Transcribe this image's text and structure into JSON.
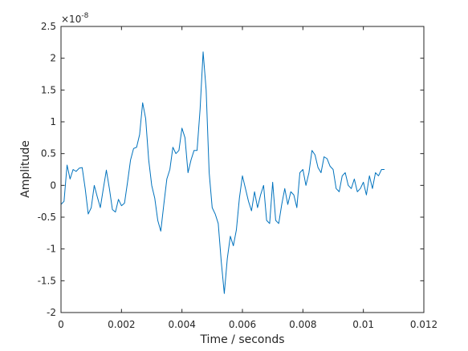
{
  "chart_data": {
    "type": "line",
    "xlabel": "Time / seconds",
    "ylabel": "Amplitude",
    "y_exponent_label": "×10",
    "y_exponent_power": "-8",
    "xlim": [
      0,
      0.012
    ],
    "ylim": [
      -2,
      2.5
    ],
    "x_ticks": [
      0,
      0.002,
      0.004,
      0.006,
      0.008,
      0.01,
      0.012
    ],
    "x_tick_labels": [
      "0",
      "0.002",
      "0.004",
      "0.006",
      "0.008",
      "0.01",
      "0.012"
    ],
    "y_ticks": [
      -2,
      -1.5,
      -1,
      -0.5,
      0,
      0.5,
      1,
      1.5,
      2,
      2.5
    ],
    "y_tick_labels": [
      "-2",
      "-1.5",
      "-1",
      "-0.5",
      "0",
      "0.5",
      "1",
      "1.5",
      "2",
      "2.5"
    ],
    "grid": false,
    "series_color": "#0072BD",
    "series": [
      {
        "x": [
          0.0,
          0.0001,
          0.0002,
          0.0003,
          0.0004,
          0.0005,
          0.0006,
          0.0007,
          0.0008,
          0.0009,
          0.001,
          0.0011,
          0.0012,
          0.0013,
          0.0014,
          0.0015,
          0.0016,
          0.0017,
          0.0018,
          0.0019,
          0.002,
          0.0021,
          0.0022,
          0.0023,
          0.0024,
          0.0025,
          0.0026,
          0.0027,
          0.0028,
          0.0029,
          0.003,
          0.0031,
          0.0032,
          0.0033,
          0.0034,
          0.0035,
          0.0036,
          0.0037,
          0.0038,
          0.0039,
          0.004,
          0.0041,
          0.0042,
          0.0043,
          0.0044,
          0.0045,
          0.0046,
          0.0047,
          0.0048,
          0.0049,
          0.005,
          0.0051,
          0.0052,
          0.0053,
          0.0054,
          0.0055,
          0.0056,
          0.0057,
          0.0058,
          0.0059,
          0.006,
          0.0061,
          0.0062,
          0.0063,
          0.0064,
          0.0065,
          0.0066,
          0.0067,
          0.0068,
          0.0069,
          0.007,
          0.0071,
          0.0072,
          0.0073,
          0.0074,
          0.0075,
          0.0076,
          0.0077,
          0.0078,
          0.0079,
          0.008,
          0.0081,
          0.0082,
          0.0083,
          0.0084,
          0.0085,
          0.0086,
          0.0087,
          0.0088,
          0.0089,
          0.009,
          0.0091,
          0.0092,
          0.0093,
          0.0094,
          0.0095,
          0.0096,
          0.0097,
          0.0098,
          0.0099,
          0.01,
          0.0101,
          0.0102,
          0.0103,
          0.0104,
          0.0105,
          0.0106,
          0.0107
        ],
        "y": [
          -0.3,
          -0.25,
          0.32,
          0.1,
          0.25,
          0.22,
          0.27,
          0.28,
          -0.05,
          -0.45,
          -0.35,
          0.0,
          -0.18,
          -0.35,
          -0.05,
          0.24,
          -0.05,
          -0.38,
          -0.42,
          -0.22,
          -0.32,
          -0.28,
          0.05,
          0.4,
          0.58,
          0.6,
          0.8,
          1.3,
          1.05,
          0.4,
          0.0,
          -0.2,
          -0.55,
          -0.72,
          -0.3,
          0.1,
          0.25,
          0.6,
          0.5,
          0.55,
          0.9,
          0.75,
          0.2,
          0.4,
          0.55,
          0.55,
          1.2,
          2.1,
          1.5,
          0.2,
          -0.35,
          -0.45,
          -0.6,
          -1.2,
          -1.7,
          -1.15,
          -0.8,
          -0.95,
          -0.7,
          -0.2,
          0.15,
          -0.05,
          -0.25,
          -0.4,
          -0.1,
          -0.35,
          -0.15,
          0.0,
          -0.55,
          -0.6,
          0.05,
          -0.55,
          -0.6,
          -0.3,
          -0.05,
          -0.3,
          -0.1,
          -0.15,
          -0.35,
          0.2,
          0.25,
          0.0,
          0.2,
          0.55,
          0.48,
          0.28,
          0.2,
          0.45,
          0.42,
          0.3,
          0.25,
          -0.05,
          -0.1,
          0.15,
          0.2,
          0.0,
          -0.05,
          0.1,
          -0.1,
          -0.05,
          0.05,
          -0.15,
          0.15,
          -0.05,
          0.2,
          0.15,
          0.25,
          0.25
        ]
      }
    ]
  }
}
